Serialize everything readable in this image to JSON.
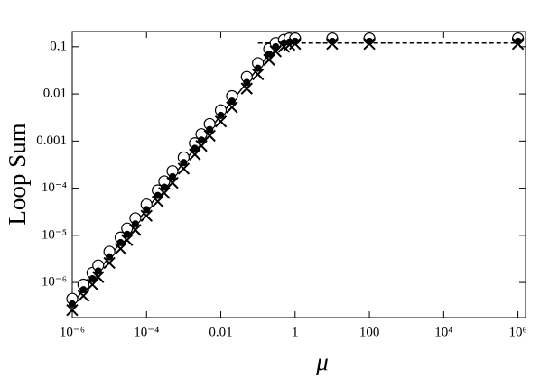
{
  "chart_data": {
    "type": "scatter",
    "x_label": "μ",
    "y_label": "Loop Sum",
    "log_x": true,
    "log_y": true,
    "x": [
      1e-06,
      2e-06,
      3.5e-06,
      5e-06,
      1e-05,
      2e-05,
      3e-05,
      5e-05,
      0.0001,
      0.0002,
      0.0003,
      0.0005,
      0.001,
      0.002,
      0.003,
      0.005,
      0.01,
      0.02,
      0.05,
      0.1,
      0.2,
      0.3,
      0.5,
      0.7,
      1,
      10,
      100,
      1000000.0
    ],
    "series": [
      {
        "marker": "open-circle",
        "color": "#000000",
        "values": [
          4.5e-07,
          9e-07,
          1.6e-06,
          2.3e-06,
          4.5e-06,
          9e-06,
          1.4e-05,
          2.3e-05,
          4.5e-05,
          9e-05,
          0.00014,
          0.00023,
          0.00045,
          0.0009,
          0.0014,
          0.0023,
          0.0045,
          0.009,
          0.023,
          0.045,
          0.09,
          0.12,
          0.14,
          0.15,
          0.15,
          0.15,
          0.15,
          0.15
        ]
      },
      {
        "marker": "dot",
        "color": "#000000",
        "values": [
          3.5e-07,
          7e-07,
          1.2e-06,
          1.75e-06,
          3.5e-06,
          7e-06,
          1.05e-05,
          1.75e-05,
          3.5e-05,
          7e-05,
          0.000105,
          0.000175,
          0.00035,
          0.0007,
          0.00105,
          0.00175,
          0.0035,
          0.007,
          0.0175,
          0.035,
          0.07,
          0.1,
          0.12,
          0.125,
          0.13,
          0.13,
          0.13,
          0.13
        ]
      },
      {
        "marker": "cross",
        "color": "#000000",
        "values": [
          2.6e-07,
          5.2e-07,
          9e-07,
          1.3e-06,
          2.6e-06,
          5.2e-06,
          7.9e-06,
          1.3e-05,
          2.6e-05,
          5.2e-05,
          7.9e-05,
          0.00013,
          0.00026,
          0.00052,
          0.00079,
          0.0013,
          0.0026,
          0.0052,
          0.013,
          0.026,
          0.053,
          0.08,
          0.1,
          0.11,
          0.115,
          0.115,
          0.115,
          0.115
        ]
      },
      {
        "marker": "solid-line",
        "color": "#000000",
        "values": [
          3.5e-07,
          7e-07,
          1.2e-06,
          1.75e-06,
          3.5e-06,
          7e-06,
          1.05e-05,
          1.75e-05,
          3.5e-05,
          7e-05,
          0.000105,
          0.000175,
          0.00035,
          0.0007,
          0.00105,
          0.00175,
          0.0035,
          0.007,
          0.0175,
          0.035,
          0.07,
          0.1,
          0.12,
          0.125,
          0.13,
          null,
          null,
          null
        ]
      },
      {
        "marker": "dashed-line",
        "color": "#000000",
        "values": [
          null,
          null,
          null,
          null,
          null,
          null,
          null,
          null,
          null,
          null,
          null,
          null,
          null,
          null,
          null,
          null,
          null,
          null,
          null,
          0.12,
          0.12,
          0.12,
          0.12,
          0.12,
          0.12,
          0.12,
          0.12,
          0.12
        ]
      }
    ],
    "xlim": [
      1e-06,
      1600000.0
    ],
    "xticks": [
      {
        "value": 1e-06,
        "label": "10⁻⁶"
      },
      {
        "value": 0.0001,
        "label": "10⁻⁴"
      },
      0.01,
      1,
      100,
      {
        "value": 10000.0,
        "label": "10⁴"
      },
      {
        "value": 1000000.0,
        "label": "10⁶"
      }
    ],
    "ylim": [
      1.8e-07,
      0.21
    ],
    "yticks": [
      {
        "value": 1e-06,
        "label": "10⁻⁶"
      },
      {
        "value": 1e-05,
        "label": "10⁻⁵"
      },
      {
        "value": 0.0001,
        "label": "10⁻⁴"
      },
      0.001,
      0.01,
      0.1
    ]
  }
}
